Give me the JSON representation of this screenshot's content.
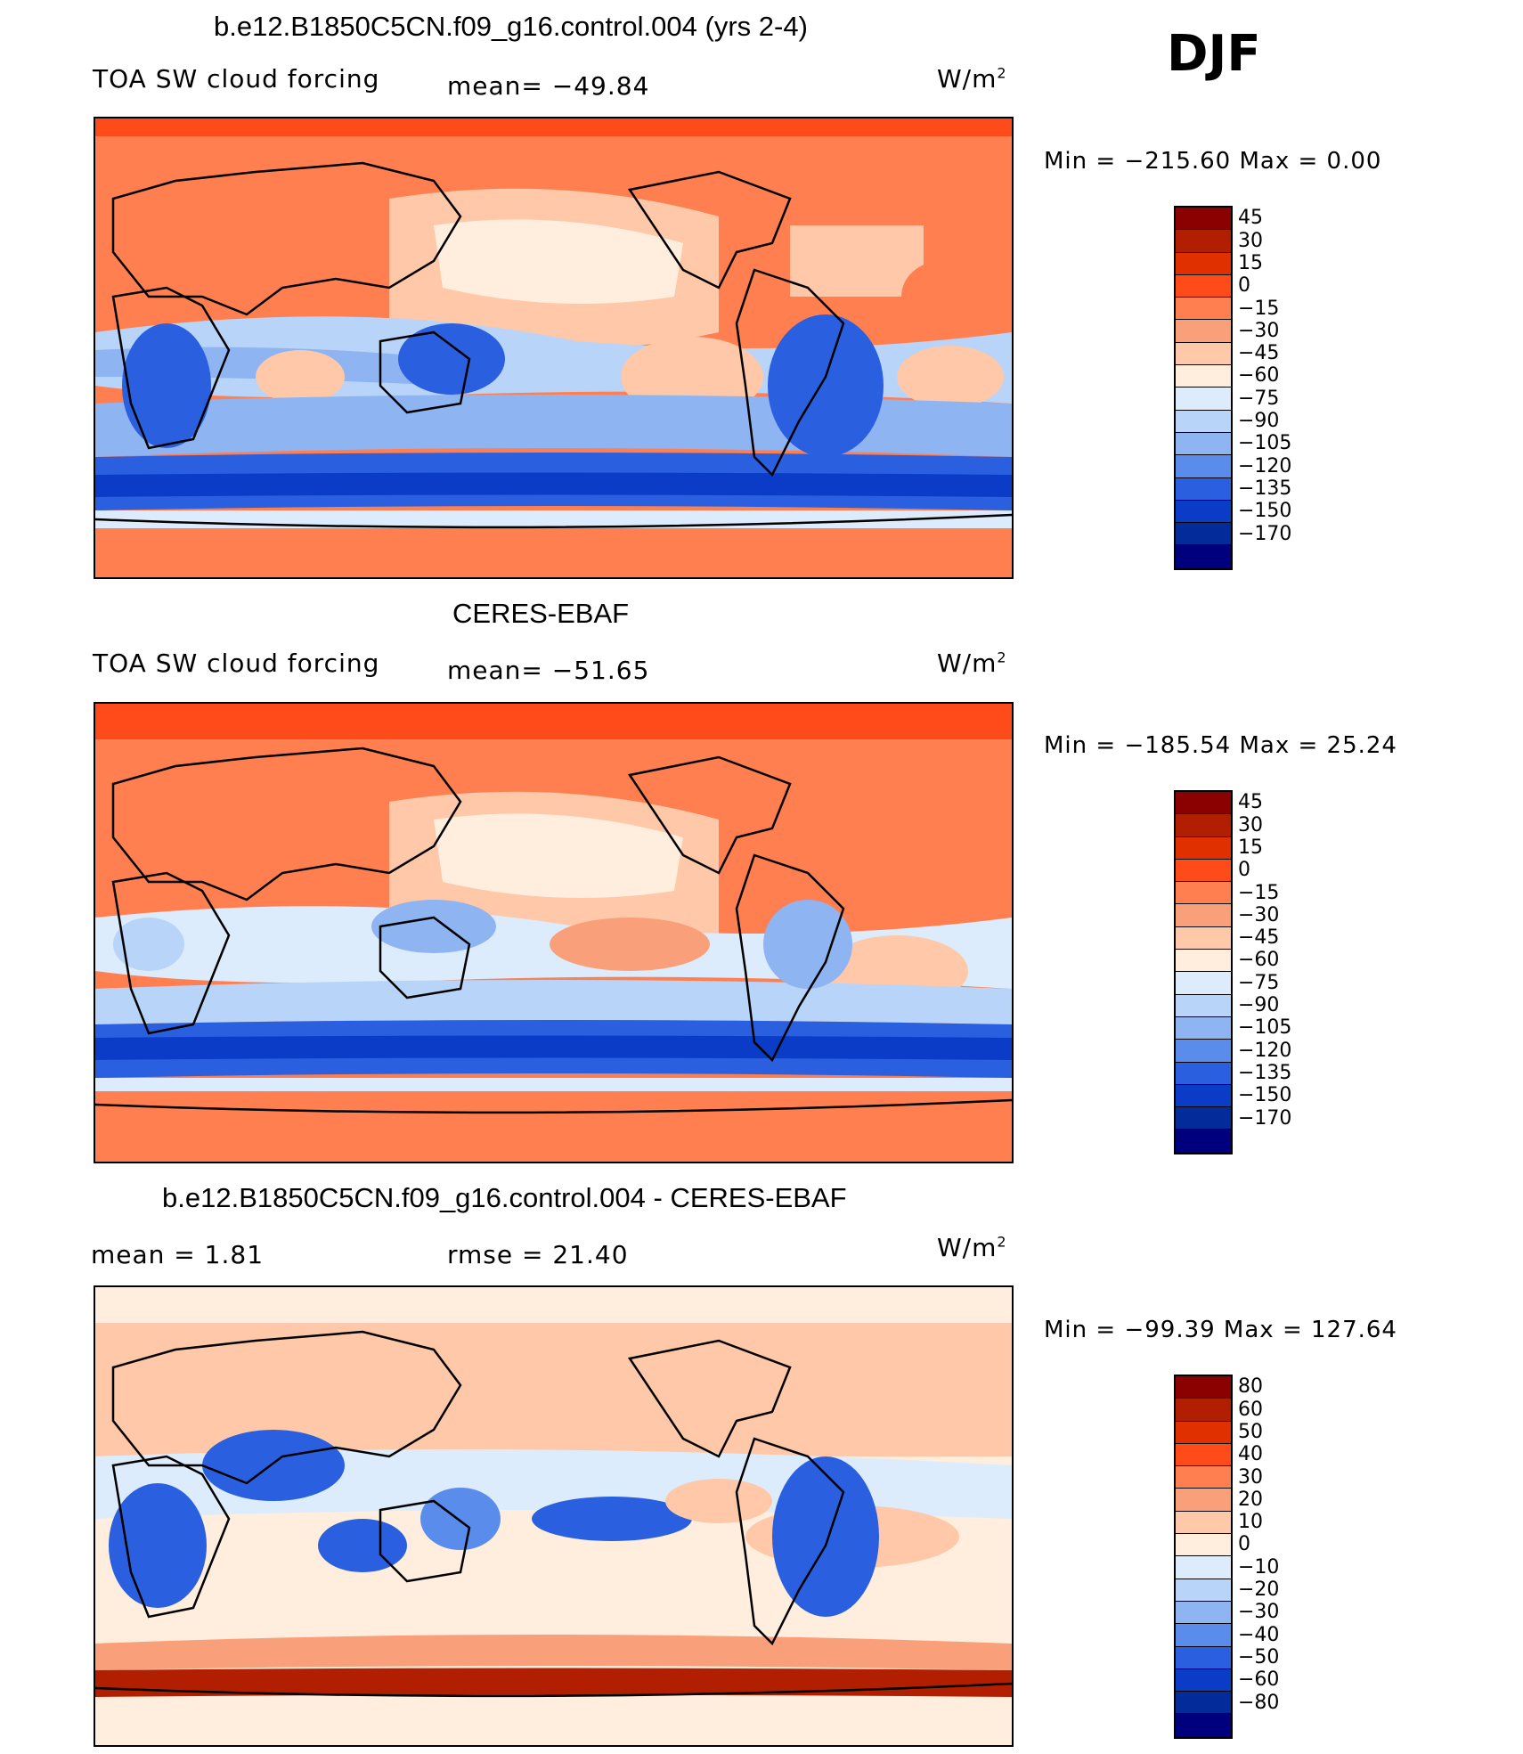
{
  "season": "DJF",
  "panels": [
    {
      "title": "b.e12.B1850C5CN.f09_g16.control.004 (yrs 2-4)",
      "left_label": "TOA SW cloud forcing",
      "center_label": "mean= −49.84",
      "units": "W/m",
      "units_sup": "2",
      "minmax": "Min = −215.60 Max =    0.00",
      "levels": [
        "45",
        "30",
        "15",
        "0",
        "−15",
        "−30",
        "−45",
        "−60",
        "−75",
        "−90",
        "−105",
        "−120",
        "−135",
        "−150",
        "−170"
      ],
      "colors": [
        "#8b0000",
        "#b21e00",
        "#e03000",
        "#ff4a1a",
        "#ff7f50",
        "#f9a07a",
        "#ffc8a8",
        "#ffeedd",
        "#dcecfc",
        "#b8d4f8",
        "#8fb4f2",
        "#5a8cec",
        "#2a60e0",
        "#0a3cc8",
        "#032b9a",
        "#00007f"
      ]
    },
    {
      "title": "CERES-EBAF",
      "left_label": "TOA SW cloud forcing",
      "center_label": "mean= −51.65",
      "units": "W/m",
      "units_sup": "2",
      "minmax": "Min = −185.54 Max =   25.24",
      "levels": [
        "45",
        "30",
        "15",
        "0",
        "−15",
        "−30",
        "−45",
        "−60",
        "−75",
        "−90",
        "−105",
        "−120",
        "−135",
        "−150",
        "−170"
      ],
      "colors": [
        "#8b0000",
        "#b21e00",
        "#e03000",
        "#ff4a1a",
        "#ff7f50",
        "#f9a07a",
        "#ffc8a8",
        "#ffeedd",
        "#dcecfc",
        "#b8d4f8",
        "#8fb4f2",
        "#5a8cec",
        "#2a60e0",
        "#0a3cc8",
        "#032b9a",
        "#00007f"
      ]
    },
    {
      "title": "b.e12.B1850C5CN.f09_g16.control.004 - CERES-EBAF",
      "left_label": "mean =     1.81",
      "center_label": "rmse =   21.40",
      "units": "W/m",
      "units_sup": "2",
      "minmax": "Min = −99.39 Max = 127.64",
      "levels": [
        "80",
        "60",
        "50",
        "40",
        "30",
        "20",
        "10",
        "0",
        "−10",
        "−20",
        "−30",
        "−40",
        "−50",
        "−60",
        "−80"
      ],
      "colors": [
        "#8b0000",
        "#b21e00",
        "#e03000",
        "#ff4a1a",
        "#ff7f50",
        "#f9a07a",
        "#ffc8a8",
        "#ffeedd",
        "#dcecfc",
        "#b8d4f8",
        "#8fb4f2",
        "#5a8cec",
        "#2a60e0",
        "#0a3cc8",
        "#032b9a",
        "#00007f"
      ]
    }
  ],
  "chart_data": {
    "type": "heatmap",
    "season": "DJF",
    "variable": "TOA SW cloud forcing",
    "units": "W/m2",
    "maps": [
      {
        "name": "b.e12.B1850C5CN.f09_g16.control.004 (yrs 2-4)",
        "mean": -49.84,
        "min": -215.6,
        "max": 0.0,
        "contour_levels": [
          45,
          30,
          15,
          0,
          -15,
          -30,
          -45,
          -60,
          -75,
          -90,
          -105,
          -120,
          -135,
          -150,
          -170
        ]
      },
      {
        "name": "CERES-EBAF",
        "mean": -51.65,
        "min": -185.54,
        "max": 25.24,
        "contour_levels": [
          45,
          30,
          15,
          0,
          -15,
          -30,
          -45,
          -60,
          -75,
          -90,
          -105,
          -120,
          -135,
          -150,
          -170
        ]
      },
      {
        "name": "b.e12.B1850C5CN.f09_g16.control.004 - CERES-EBAF",
        "mean": 1.81,
        "rmse": 21.4,
        "min": -99.39,
        "max": 127.64,
        "contour_levels": [
          80,
          60,
          50,
          40,
          30,
          20,
          10,
          0,
          -10,
          -20,
          -30,
          -40,
          -50,
          -60,
          -80
        ]
      }
    ]
  }
}
